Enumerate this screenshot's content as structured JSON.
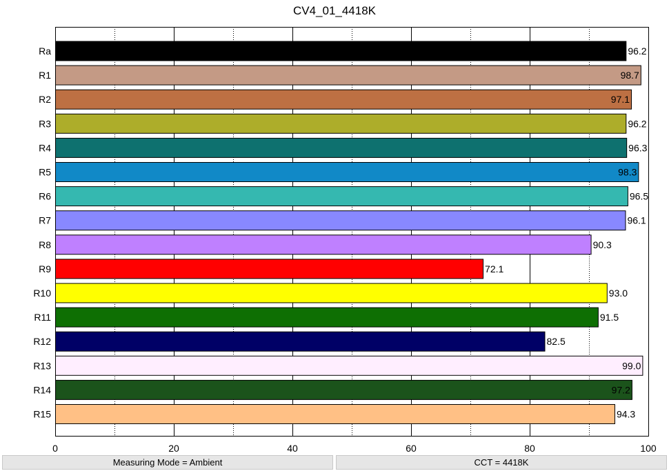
{
  "chart_data": {
    "type": "bar",
    "orientation": "horizontal",
    "title": "CV4_01_4418K",
    "categories": [
      "Ra",
      "R1",
      "R2",
      "R3",
      "R4",
      "R5",
      "R6",
      "R7",
      "R8",
      "R9",
      "R10",
      "R11",
      "R12",
      "R13",
      "R14",
      "R15"
    ],
    "values": [
      96.2,
      98.7,
      97.1,
      96.2,
      96.3,
      98.3,
      96.5,
      96.1,
      90.3,
      72.1,
      93.0,
      91.5,
      82.5,
      99.0,
      97.2,
      94.3
    ],
    "value_labels": [
      "96.2",
      "98.7",
      "97.1",
      "96.2",
      "96.3",
      "98.3",
      "96.5",
      "96.1",
      "90.3",
      "72.1",
      "93.0",
      "91.5",
      "82.5",
      "99.0",
      "97.2",
      "94.3"
    ],
    "colors": [
      "#000000",
      "#c49a85",
      "#bd7043",
      "#adad2a",
      "#0e716f",
      "#1189c7",
      "#35b8b0",
      "#8888ff",
      "#bf80ff",
      "#ff0000",
      "#ffff00",
      "#0e6f03",
      "#000066",
      "#ffeeff",
      "#1b531b",
      "#ffc085"
    ],
    "xlim": [
      0,
      100
    ],
    "xticks": [
      "0",
      "20",
      "40",
      "60",
      "80",
      "100"
    ],
    "grid": "vertical dotted at 10s, solid at 20s",
    "xlabel": "",
    "ylabel": ""
  },
  "status": {
    "left": "Measuring Mode = Ambient",
    "right": "CCT = 4418K"
  }
}
